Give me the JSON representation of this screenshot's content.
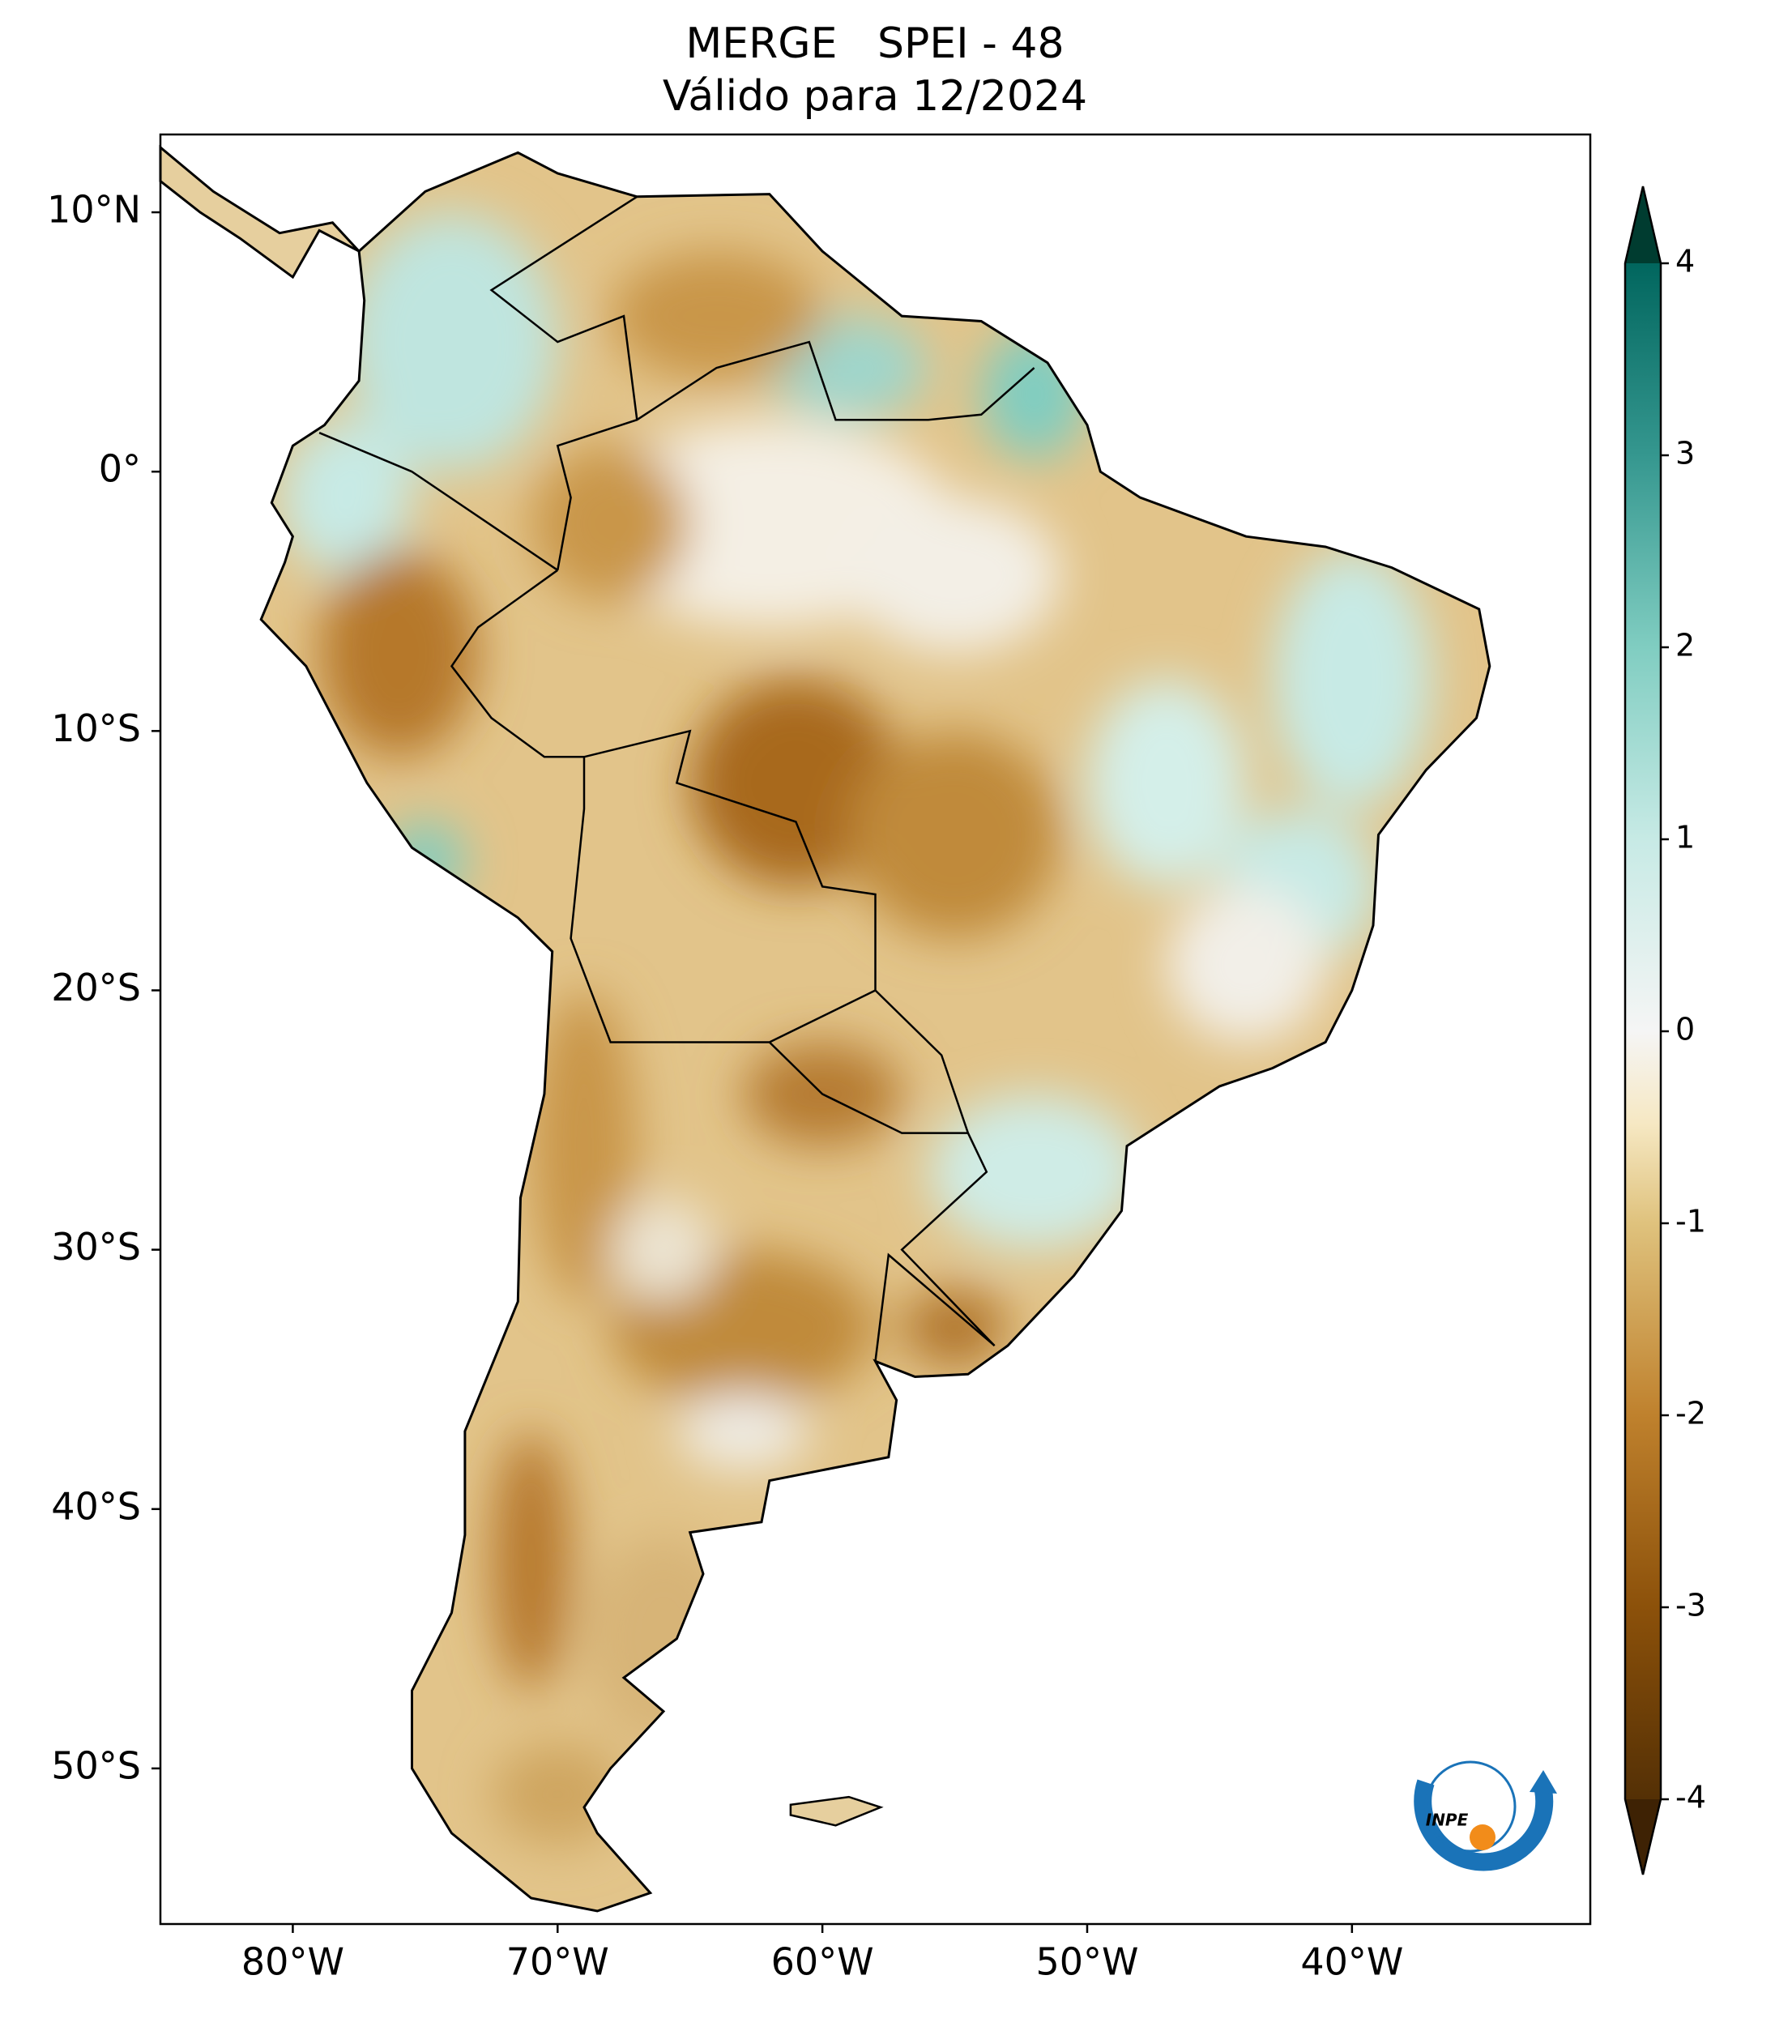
{
  "chart_data": {
    "type": "map",
    "title": [
      "MERGE   SPEI - 48",
      "Válido para 12/2024"
    ],
    "xlim": [
      -85,
      -31
    ],
    "ylim": [
      -56,
      13
    ],
    "xticks": [
      {
        "value": -80,
        "label": "80°W"
      },
      {
        "value": -70,
        "label": "70°W"
      },
      {
        "value": -60,
        "label": "60°W"
      },
      {
        "value": -50,
        "label": "50°W"
      },
      {
        "value": -40,
        "label": "40°W"
      }
    ],
    "yticks": [
      {
        "value": 10,
        "label": "10°N"
      },
      {
        "value": 0,
        "label": "0°"
      },
      {
        "value": -10,
        "label": "10°S"
      },
      {
        "value": -20,
        "label": "20°S"
      },
      {
        "value": -30,
        "label": "30°S"
      },
      {
        "value": -40,
        "label": "40°S"
      },
      {
        "value": -50,
        "label": "50°S"
      }
    ],
    "colorbar": {
      "lim": [
        -4,
        4
      ],
      "ticks": [
        -4,
        -3,
        -2,
        -1,
        0,
        1,
        2,
        3,
        4
      ]
    },
    "logo": "INPE"
  }
}
